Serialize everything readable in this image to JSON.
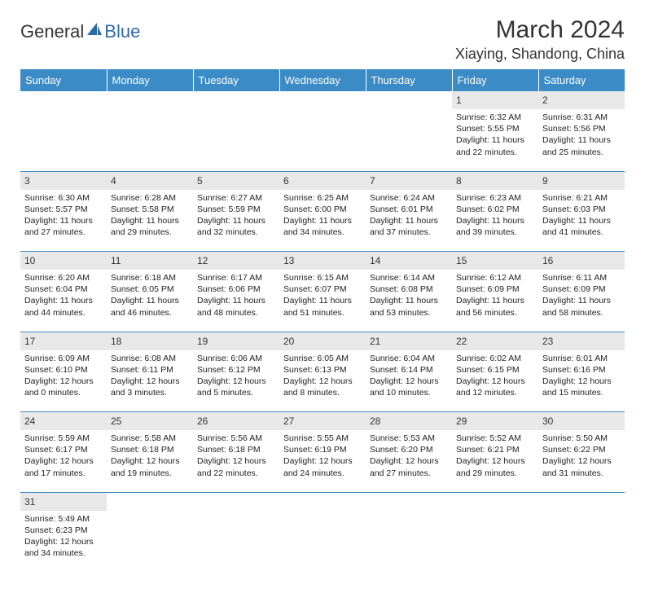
{
  "logo": {
    "word1": "General",
    "word2": "Blue"
  },
  "title": "March 2024",
  "location": "Xiaying, Shandong, China",
  "colors": {
    "header_bg": "#3b8bc7",
    "header_fg": "#ffffff",
    "daynum_bg": "#e8e8e8",
    "border": "#3b8bc7",
    "text": "#333333",
    "logo_blue": "#2f6aa8"
  },
  "weekdays": [
    "Sunday",
    "Monday",
    "Tuesday",
    "Wednesday",
    "Thursday",
    "Friday",
    "Saturday"
  ],
  "weeks": [
    [
      null,
      null,
      null,
      null,
      null,
      {
        "n": "1",
        "sunrise": "6:32 AM",
        "sunset": "5:55 PM",
        "day_h": "11",
        "day_m": "22"
      },
      {
        "n": "2",
        "sunrise": "6:31 AM",
        "sunset": "5:56 PM",
        "day_h": "11",
        "day_m": "25"
      }
    ],
    [
      {
        "n": "3",
        "sunrise": "6:30 AM",
        "sunset": "5:57 PM",
        "day_h": "11",
        "day_m": "27"
      },
      {
        "n": "4",
        "sunrise": "6:28 AM",
        "sunset": "5:58 PM",
        "day_h": "11",
        "day_m": "29"
      },
      {
        "n": "5",
        "sunrise": "6:27 AM",
        "sunset": "5:59 PM",
        "day_h": "11",
        "day_m": "32"
      },
      {
        "n": "6",
        "sunrise": "6:25 AM",
        "sunset": "6:00 PM",
        "day_h": "11",
        "day_m": "34"
      },
      {
        "n": "7",
        "sunrise": "6:24 AM",
        "sunset": "6:01 PM",
        "day_h": "11",
        "day_m": "37"
      },
      {
        "n": "8",
        "sunrise": "6:23 AM",
        "sunset": "6:02 PM",
        "day_h": "11",
        "day_m": "39"
      },
      {
        "n": "9",
        "sunrise": "6:21 AM",
        "sunset": "6:03 PM",
        "day_h": "11",
        "day_m": "41"
      }
    ],
    [
      {
        "n": "10",
        "sunrise": "6:20 AM",
        "sunset": "6:04 PM",
        "day_h": "11",
        "day_m": "44"
      },
      {
        "n": "11",
        "sunrise": "6:18 AM",
        "sunset": "6:05 PM",
        "day_h": "11",
        "day_m": "46"
      },
      {
        "n": "12",
        "sunrise": "6:17 AM",
        "sunset": "6:06 PM",
        "day_h": "11",
        "day_m": "48"
      },
      {
        "n": "13",
        "sunrise": "6:15 AM",
        "sunset": "6:07 PM",
        "day_h": "11",
        "day_m": "51"
      },
      {
        "n": "14",
        "sunrise": "6:14 AM",
        "sunset": "6:08 PM",
        "day_h": "11",
        "day_m": "53"
      },
      {
        "n": "15",
        "sunrise": "6:12 AM",
        "sunset": "6:09 PM",
        "day_h": "11",
        "day_m": "56"
      },
      {
        "n": "16",
        "sunrise": "6:11 AM",
        "sunset": "6:09 PM",
        "day_h": "11",
        "day_m": "58"
      }
    ],
    [
      {
        "n": "17",
        "sunrise": "6:09 AM",
        "sunset": "6:10 PM",
        "day_h": "12",
        "day_m": "0"
      },
      {
        "n": "18",
        "sunrise": "6:08 AM",
        "sunset": "6:11 PM",
        "day_h": "12",
        "day_m": "3"
      },
      {
        "n": "19",
        "sunrise": "6:06 AM",
        "sunset": "6:12 PM",
        "day_h": "12",
        "day_m": "5"
      },
      {
        "n": "20",
        "sunrise": "6:05 AM",
        "sunset": "6:13 PM",
        "day_h": "12",
        "day_m": "8"
      },
      {
        "n": "21",
        "sunrise": "6:04 AM",
        "sunset": "6:14 PM",
        "day_h": "12",
        "day_m": "10"
      },
      {
        "n": "22",
        "sunrise": "6:02 AM",
        "sunset": "6:15 PM",
        "day_h": "12",
        "day_m": "12"
      },
      {
        "n": "23",
        "sunrise": "6:01 AM",
        "sunset": "6:16 PM",
        "day_h": "12",
        "day_m": "15"
      }
    ],
    [
      {
        "n": "24",
        "sunrise": "5:59 AM",
        "sunset": "6:17 PM",
        "day_h": "12",
        "day_m": "17"
      },
      {
        "n": "25",
        "sunrise": "5:58 AM",
        "sunset": "6:18 PM",
        "day_h": "12",
        "day_m": "19"
      },
      {
        "n": "26",
        "sunrise": "5:56 AM",
        "sunset": "6:18 PM",
        "day_h": "12",
        "day_m": "22"
      },
      {
        "n": "27",
        "sunrise": "5:55 AM",
        "sunset": "6:19 PM",
        "day_h": "12",
        "day_m": "24"
      },
      {
        "n": "28",
        "sunrise": "5:53 AM",
        "sunset": "6:20 PM",
        "day_h": "12",
        "day_m": "27"
      },
      {
        "n": "29",
        "sunrise": "5:52 AM",
        "sunset": "6:21 PM",
        "day_h": "12",
        "day_m": "29"
      },
      {
        "n": "30",
        "sunrise": "5:50 AM",
        "sunset": "6:22 PM",
        "day_h": "12",
        "day_m": "31"
      }
    ],
    [
      {
        "n": "31",
        "sunrise": "5:49 AM",
        "sunset": "6:23 PM",
        "day_h": "12",
        "day_m": "34"
      },
      null,
      null,
      null,
      null,
      null,
      null
    ]
  ]
}
